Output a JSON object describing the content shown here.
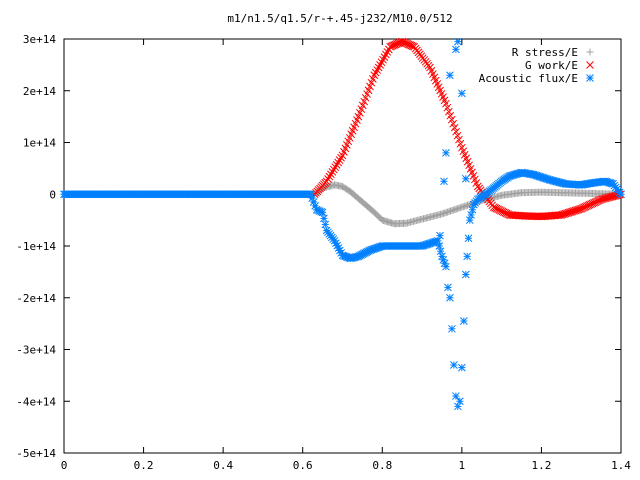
{
  "chart_data": {
    "type": "scatter",
    "title": "m1/n1.5/q1.5/r-+.45-j232/M10.0/512",
    "xlabel": "",
    "ylabel": "",
    "xlim": [
      0,
      1.4
    ],
    "ylim": [
      -500000000000000.0,
      300000000000000.0
    ],
    "grid": false,
    "legend_position": "top-right",
    "x_ticks": [
      {
        "value": 0,
        "label": "0"
      },
      {
        "value": 0.2,
        "label": "0.2"
      },
      {
        "value": 0.4,
        "label": "0.4"
      },
      {
        "value": 0.6,
        "label": "0.6"
      },
      {
        "value": 0.8,
        "label": "0.8"
      },
      {
        "value": 1.0,
        "label": "1"
      },
      {
        "value": 1.2,
        "label": "1.2"
      },
      {
        "value": 1.4,
        "label": "1.4"
      }
    ],
    "y_ticks": [
      {
        "value": 300000000000000.0,
        "label": "3e+14"
      },
      {
        "value": 200000000000000.0,
        "label": "2e+14"
      },
      {
        "value": 100000000000000.0,
        "label": "1e+14"
      },
      {
        "value": 0,
        "label": "0"
      },
      {
        "value": -100000000000000.0,
        "label": "-1e+14"
      },
      {
        "value": -200000000000000.0,
        "label": "-2e+14"
      },
      {
        "value": -300000000000000.0,
        "label": "-3e+14"
      },
      {
        "value": -400000000000000.0,
        "label": "-4e+14"
      },
      {
        "value": -500000000000000.0,
        "label": "-5e+14"
      }
    ],
    "series": [
      {
        "name": "R stress/E",
        "marker": "plus",
        "color": "#a0a0a0",
        "points": [
          [
            0.0,
            0
          ],
          [
            0.2,
            0
          ],
          [
            0.4,
            0
          ],
          [
            0.6,
            0
          ],
          [
            0.63,
            0
          ],
          [
            0.65,
            12000000000000.0
          ],
          [
            0.68,
            18000000000000.0
          ],
          [
            0.7,
            15000000000000.0
          ],
          [
            0.72,
            5000000000000.0
          ],
          [
            0.75,
            -15000000000000.0
          ],
          [
            0.78,
            -35000000000000.0
          ],
          [
            0.8,
            -50000000000000.0
          ],
          [
            0.83,
            -57000000000000.0
          ],
          [
            0.86,
            -56000000000000.0
          ],
          [
            0.9,
            -48000000000000.0
          ],
          [
            0.95,
            -38000000000000.0
          ],
          [
            1.0,
            -25000000000000.0
          ],
          [
            1.05,
            -12000000000000.0
          ],
          [
            1.1,
            -2000000000000.0
          ],
          [
            1.15,
            3000000000000.0
          ],
          [
            1.2,
            4000000000000.0
          ],
          [
            1.25,
            3000000000000.0
          ],
          [
            1.3,
            2000000000000.0
          ],
          [
            1.35,
            1000000000000.0
          ],
          [
            1.4,
            0
          ]
        ]
      },
      {
        "name": "G work/E",
        "marker": "cross",
        "color": "#ff0000",
        "points": [
          [
            0.63,
            0
          ],
          [
            0.66,
            25000000000000.0
          ],
          [
            0.7,
            75000000000000.0
          ],
          [
            0.74,
            150000000000000.0
          ],
          [
            0.78,
            230000000000000.0
          ],
          [
            0.82,
            285000000000000.0
          ],
          [
            0.85,
            295000000000000.0
          ],
          [
            0.88,
            285000000000000.0
          ],
          [
            0.92,
            245000000000000.0
          ],
          [
            0.96,
            175000000000000.0
          ],
          [
            1.0,
            90000000000000.0
          ],
          [
            1.04,
            15000000000000.0
          ],
          [
            1.08,
            -25000000000000.0
          ],
          [
            1.12,
            -40000000000000.0
          ],
          [
            1.16,
            -42000000000000.0
          ],
          [
            1.2,
            -43000000000000.0
          ],
          [
            1.25,
            -40000000000000.0
          ],
          [
            1.3,
            -28000000000000.0
          ],
          [
            1.35,
            -10000000000000.0
          ],
          [
            1.4,
            0
          ]
        ]
      },
      {
        "name": "Acoustic flux/E",
        "marker": "star",
        "color": "#0080ff",
        "points": [
          [
            0.0,
            0
          ],
          [
            0.2,
            0
          ],
          [
            0.4,
            0
          ],
          [
            0.6,
            0
          ],
          [
            0.62,
            0
          ],
          [
            0.635,
            -30000000000000.0
          ],
          [
            0.65,
            -35000000000000.0
          ],
          [
            0.66,
            -70000000000000.0
          ],
          [
            0.68,
            -90000000000000.0
          ],
          [
            0.7,
            -118000000000000.0
          ],
          [
            0.72,
            -124000000000000.0
          ],
          [
            0.74,
            -120000000000000.0
          ],
          [
            0.77,
            -108000000000000.0
          ],
          [
            0.8,
            -100000000000000.0
          ],
          [
            0.85,
            -100000000000000.0
          ],
          [
            0.9,
            -100000000000000.0
          ],
          [
            0.94,
            -90000000000000.0
          ],
          [
            0.95,
            -120000000000000.0
          ],
          [
            0.96,
            -140000000000000.0
          ],
          [
            0.965,
            -180000000000000.0
          ],
          [
            0.97,
            -200000000000000.0
          ],
          [
            0.975,
            -260000000000000.0
          ],
          [
            0.98,
            -330000000000000.0
          ],
          [
            0.985,
            -390000000000000.0
          ],
          [
            0.99,
            -410000000000000.0
          ],
          [
            0.995,
            -400000000000000.0
          ],
          [
            1.0,
            -335000000000000.0
          ],
          [
            1.005,
            -245000000000000.0
          ],
          [
            1.01,
            -155000000000000.0
          ],
          [
            1.02,
            -50000000000000.0
          ],
          [
            1.03,
            -20000000000000.0
          ],
          [
            1.04,
            -10000000000000.0
          ],
          [
            1.06,
            0
          ],
          [
            1.08,
            12000000000000.0
          ],
          [
            1.1,
            25000000000000.0
          ],
          [
            1.12,
            35000000000000.0
          ],
          [
            1.15,
            42000000000000.0
          ],
          [
            1.18,
            38000000000000.0
          ],
          [
            1.22,
            28000000000000.0
          ],
          [
            1.26,
            20000000000000.0
          ],
          [
            1.3,
            18000000000000.0
          ],
          [
            1.33,
            22000000000000.0
          ],
          [
            1.36,
            25000000000000.0
          ],
          [
            1.38,
            20000000000000.0
          ],
          [
            1.4,
            0
          ]
        ],
        "outliers": [
          [
            0.96,
            80000000000000.0
          ],
          [
            0.97,
            230000000000000.0
          ],
          [
            0.985,
            280000000000000.0
          ],
          [
            0.99,
            295000000000000.0
          ],
          [
            1.0,
            195000000000000.0
          ],
          [
            0.955,
            25000000000000.0
          ],
          [
            1.01,
            30000000000000.0
          ],
          [
            0.945,
            -80000000000000.0
          ]
        ]
      }
    ]
  }
}
